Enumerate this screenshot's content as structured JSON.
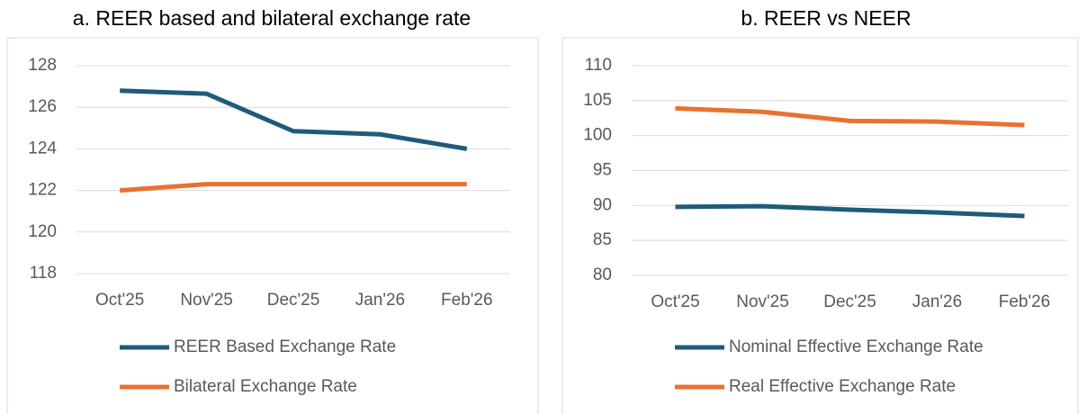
{
  "chart_data": [
    {
      "type": "line",
      "title": "a. REER based and bilateral exchange rate",
      "categories": [
        "Oct'25",
        "Nov'25",
        "Dec'25",
        "Jan'26",
        "Feb'26"
      ],
      "series": [
        {
          "name": "REER Based Exchange Rate",
          "color": "#1e5b7b",
          "values": [
            126.8,
            126.65,
            124.85,
            124.7,
            124.0
          ]
        },
        {
          "name": "Bilateral Exchange Rate",
          "color": "#e97132",
          "values": [
            122.0,
            122.3,
            122.3,
            122.3,
            122.3
          ]
        }
      ],
      "ylim": [
        118,
        128
      ],
      "yticks": [
        118,
        120,
        122,
        124,
        126,
        128
      ],
      "grid": true
    },
    {
      "type": "line",
      "title": "b. REER vs NEER",
      "categories": [
        "Oct'25",
        "Nov'25",
        "Dec'25",
        "Jan'26",
        "Feb'26"
      ],
      "series": [
        {
          "name": "Nominal Effective Exchange Rate",
          "color": "#1e5b7b",
          "values": [
            89.8,
            89.9,
            89.4,
            89.0,
            88.5
          ]
        },
        {
          "name": "Real Effective Exchange Rate",
          "color": "#e97132",
          "values": [
            103.9,
            103.4,
            102.1,
            102.0,
            101.5
          ]
        }
      ],
      "ylim": [
        80,
        110
      ],
      "yticks": [
        80,
        85,
        90,
        95,
        100,
        105,
        110
      ],
      "grid": true
    }
  ]
}
